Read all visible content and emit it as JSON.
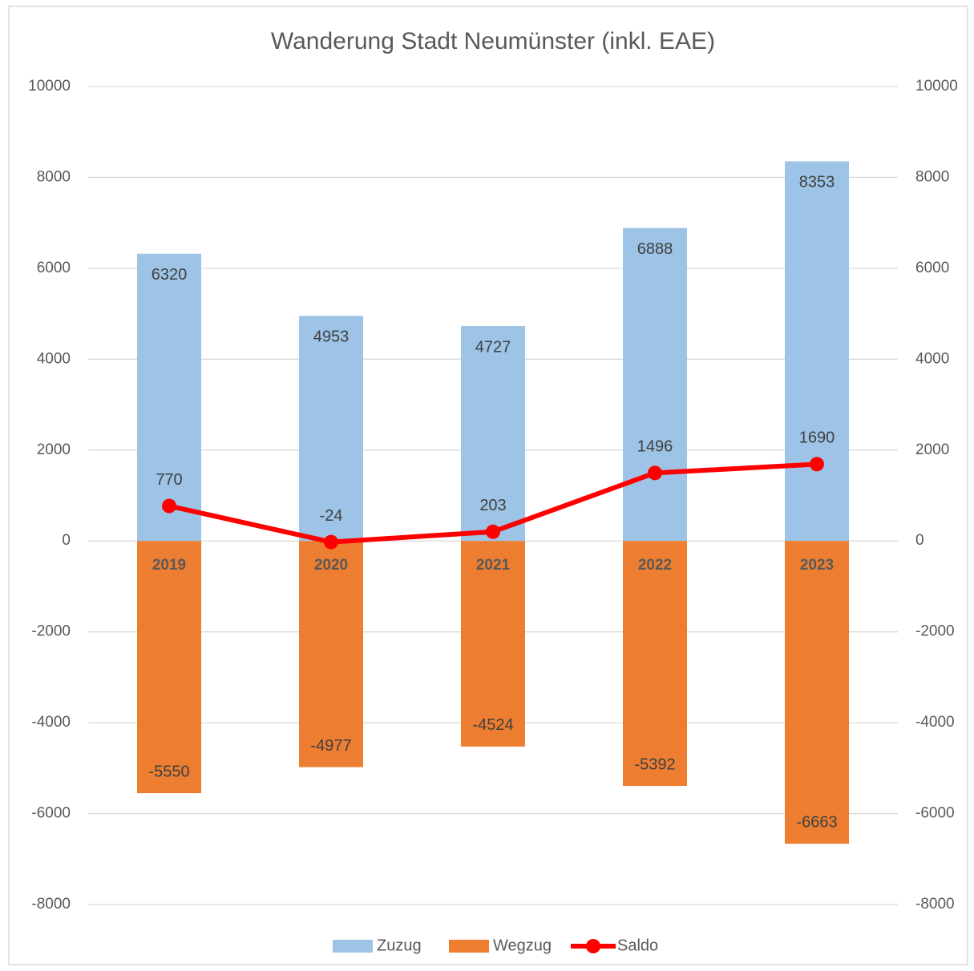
{
  "chart_data": {
    "type": "bar-line",
    "title": "Wanderung Stadt Neumünster (inkl. EAE)",
    "categories": [
      "2019",
      "2020",
      "2021",
      "2022",
      "2023"
    ],
    "series": [
      {
        "name": "Zuzug",
        "type": "bar",
        "color": "#9dc3e6",
        "values": [
          6320,
          4953,
          4727,
          6888,
          8353
        ]
      },
      {
        "name": "Wegzug",
        "type": "bar",
        "color": "#ed7d31",
        "values": [
          -5550,
          -4977,
          -4524,
          -5392,
          -6663
        ]
      },
      {
        "name": "Saldo",
        "type": "line",
        "axis": "y2",
        "color": "#ff0000",
        "values": [
          770,
          -24,
          203,
          1496,
          1690
        ]
      }
    ],
    "ylim": [
      -8000,
      10000
    ],
    "yticks": [
      -8000,
      -6000,
      -4000,
      -2000,
      0,
      2000,
      4000,
      6000,
      8000,
      10000
    ],
    "y2lim": [
      -8000,
      10000
    ],
    "y2ticks": [
      -8000,
      -6000,
      -4000,
      -2000,
      0,
      2000,
      4000,
      6000,
      8000,
      10000
    ],
    "grid": true,
    "legend": "bottom"
  }
}
